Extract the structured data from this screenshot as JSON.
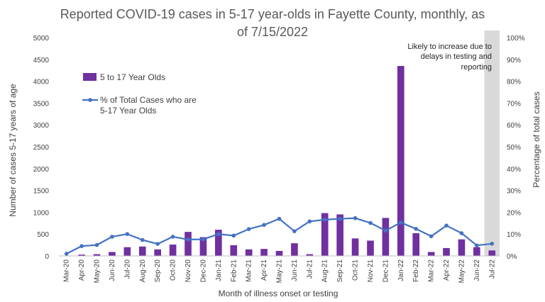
{
  "chart_data": {
    "type": "bar",
    "title_lines": [
      "Reported COVID-19 cases in 5-17 year-olds in Fayette County, monthly, as",
      "of 7/15/2022"
    ],
    "xlabel": "Month of illness onset or testing",
    "ylabel": "Number of cases 5-17 years of age",
    "y2label": "Percentage of total cases",
    "ylim": [
      0,
      5000
    ],
    "y2lim": [
      0,
      100
    ],
    "yticks": [
      "0",
      "500",
      "1000",
      "1500",
      "2000",
      "2500",
      "3000",
      "3500",
      "4000",
      "4500",
      "5000"
    ],
    "y2ticks": [
      "0%",
      "10%",
      "20%",
      "30%",
      "40%",
      "50%",
      "60%",
      "70%",
      "80%",
      "90%",
      "100%"
    ],
    "categories": [
      "Mar-20",
      "Apr-20",
      "May-20",
      "Jun-20",
      "Jul-20",
      "Aug-20",
      "Sep-20",
      "Oct-20",
      "Nov-20",
      "Dec-20",
      "Jan-21",
      "Feb-21",
      "Mar-21",
      "Apr-21",
      "May-21",
      "Jun-21",
      "Jul-21",
      "Aug-21",
      "Sep-21",
      "Oct-21",
      "Nov-21",
      "Dec-21",
      "Jan-22",
      "Feb-22",
      "Mar-22",
      "Apr-22",
      "May-22",
      "Jun-22",
      "Jul-22"
    ],
    "series": [
      {
        "name": "5 to 17 Year Olds",
        "type": "bar",
        "axis": "left",
        "color": "#7030a0",
        "values": [
          5,
          30,
          40,
          90,
          200,
          215,
          150,
          260,
          550,
          430,
          600,
          245,
          150,
          160,
          115,
          290,
          40,
          980,
          950,
          400,
          350,
          870,
          4350,
          520,
          90,
          180,
          380,
          200,
          125
        ]
      },
      {
        "name": "% of Total Cases who are 5-17 Year Olds",
        "type": "line",
        "axis": "right",
        "color": "#4472c4",
        "values": [
          1,
          4.5,
          5,
          8.8,
          10,
          7.3,
          5.5,
          8.8,
          7.5,
          7.6,
          10,
          9.3,
          12.3,
          14.2,
          17,
          11.3,
          15.8,
          16.6,
          17,
          17.3,
          15.1,
          11.6,
          15.3,
          12.4,
          9,
          13.9,
          10.4,
          4.8,
          5.6
        ]
      }
    ],
    "legend_position": "upper-left",
    "grid": false,
    "shaded_region": {
      "category": "Jul-22",
      "color": "#d9d9d9"
    },
    "annotation": [
      "Likely to increase due to",
      "delays in testing and",
      "reporting"
    ]
  }
}
